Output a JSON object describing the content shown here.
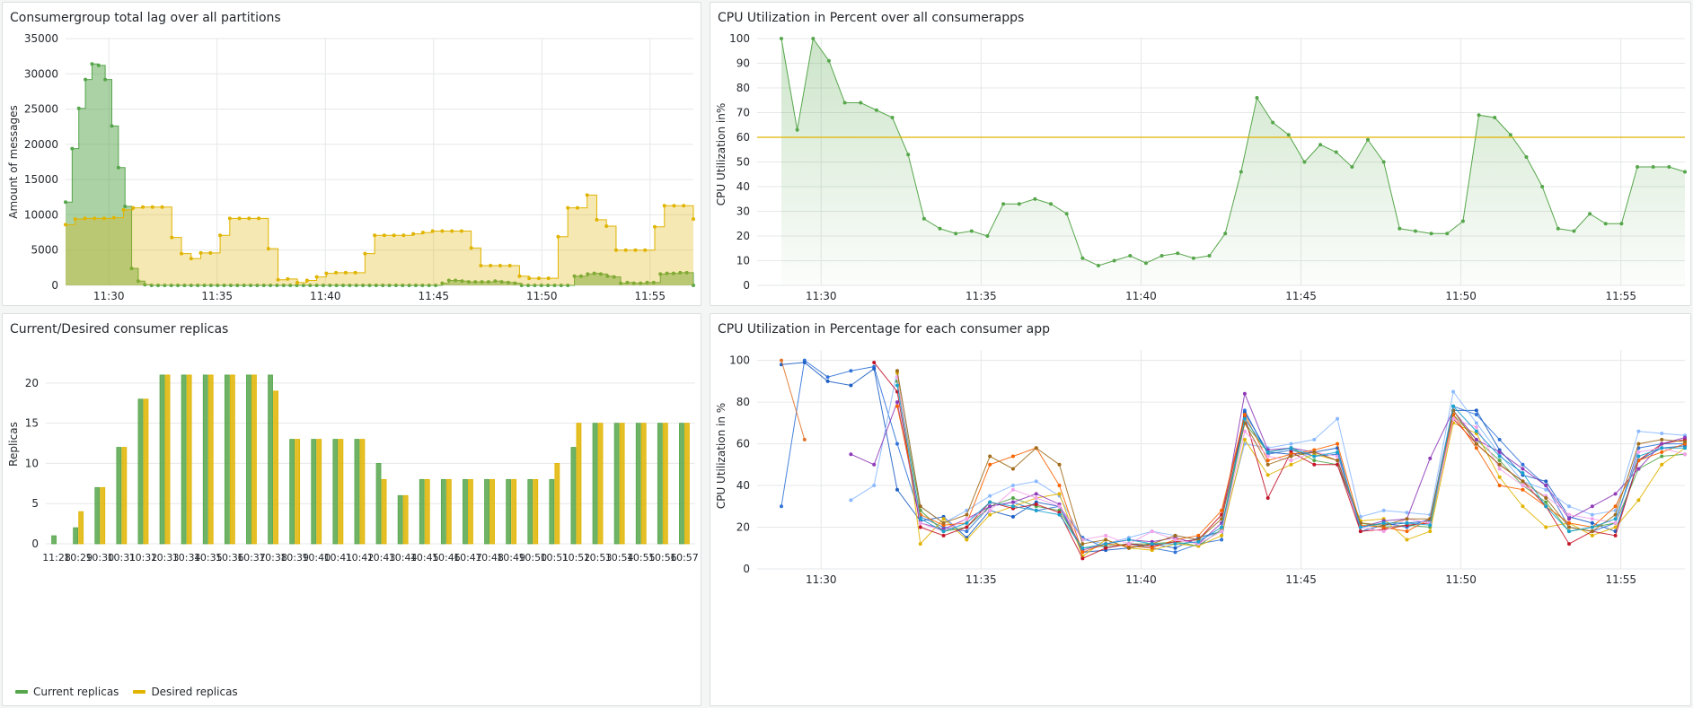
{
  "panels": [
    {
      "title": "Consumergroup total lag over all partitions"
    },
    {
      "title": "CPU Utilization in Percent over all consumerapps"
    },
    {
      "title": "Current/Desired consumer replicas"
    },
    {
      "title": "CPU Utilization in Percentage for each consumer app"
    }
  ],
  "colors": {
    "green": "#56a64b",
    "yellow": "#e0b400"
  },
  "legend": {
    "current": "Current replicas",
    "desired": "Desired replicas"
  },
  "chart_data": [
    {
      "type": "area",
      "title": "Consumergroup total lag over all partitions",
      "ylabel": "Amount of messages",
      "xlabel": "",
      "ylim": [
        0,
        35000
      ],
      "yticks": [
        "0",
        "5000",
        "10000",
        "15000",
        "20000",
        "25000",
        "30000",
        "35000"
      ],
      "xticks": [
        "11:30",
        "11:35",
        "11:40",
        "11:45",
        "11:50",
        "11:55"
      ],
      "x_start": "11:28",
      "x_end": "11:57",
      "series": [
        {
          "color": "#56a64b",
          "values": [
            11800,
            19400,
            25100,
            29200,
            31400,
            31200,
            29200,
            22600,
            16700,
            11200,
            2400,
            600,
            100,
            0,
            0,
            0,
            0,
            0,
            0,
            0,
            0,
            0,
            0,
            0,
            0,
            0,
            0,
            0,
            0,
            0,
            0,
            0,
            0,
            0,
            0,
            0,
            0,
            0,
            0,
            0,
            0,
            0,
            0,
            0,
            0,
            0,
            0,
            0,
            0,
            0,
            0,
            0,
            0,
            0,
            0,
            0,
            0,
            300,
            700,
            700,
            600,
            500,
            500,
            500,
            500,
            600,
            500,
            400,
            300,
            0,
            0,
            0,
            0,
            0,
            0,
            0,
            0,
            1300,
            1300,
            1600,
            1700,
            1600,
            1300,
            1200,
            300,
            400,
            300,
            300,
            400,
            400,
            1600,
            1700,
            1700,
            1800,
            1800,
            0
          ]
        },
        {
          "color": "#e0b400",
          "values": [
            8600,
            9400,
            9500,
            9500,
            9500,
            9600,
            10700,
            11000,
            11100,
            11100,
            11100,
            6800,
            4500,
            3800,
            4600,
            4600,
            7100,
            9500,
            9500,
            9500,
            9500,
            5200,
            800,
            900,
            400,
            700,
            1200,
            1700,
            1800,
            1800,
            1800,
            4500,
            7100,
            7100,
            7100,
            7100,
            7300,
            7500,
            7700,
            7700,
            7700,
            7700,
            5300,
            2800,
            2800,
            2800,
            2800,
            1300,
            1000,
            1000,
            1000,
            6900,
            11000,
            11000,
            12800,
            9300,
            8400,
            5000,
            5000,
            5000,
            5000,
            8300,
            11300,
            11300,
            11300,
            9400
          ]
        }
      ]
    },
    {
      "type": "line",
      "title": "CPU Utilization in Percent over all consumerapps",
      "ylabel": "CPU Utilization in%",
      "xlabel": "",
      "ylim": [
        0,
        100
      ],
      "yticks": [
        "0",
        "10",
        "20",
        "30",
        "40",
        "50",
        "60",
        "70",
        "80",
        "90",
        "100"
      ],
      "xticks": [
        "11:30",
        "11:35",
        "11:40",
        "11:45",
        "11:50",
        "11:55"
      ],
      "x_start": "11:28",
      "x_end": "11:57",
      "threshold": 60,
      "series": [
        {
          "color": "#56a64b",
          "values": [
            100,
            63,
            100,
            91,
            74,
            74,
            71,
            68,
            53,
            27,
            23,
            21,
            22,
            20,
            33,
            33,
            35,
            33,
            29,
            11,
            8,
            10,
            12,
            9,
            12,
            13,
            11,
            12,
            21,
            46,
            76,
            66,
            61,
            50,
            57,
            54,
            48,
            59,
            50,
            23,
            22,
            21,
            21,
            26,
            69,
            68,
            61,
            52,
            40,
            23,
            22,
            29,
            25,
            25,
            48,
            48,
            48,
            46
          ]
        }
      ]
    },
    {
      "type": "bar",
      "title": "Current/Desired consumer replicas",
      "ylabel": "Replicas",
      "xlabel": "",
      "ylim": [
        0,
        23
      ],
      "yticks": [
        "0",
        "5",
        "10",
        "15",
        "20"
      ],
      "categories": [
        "11:28",
        "11:29",
        "11:30",
        "11:31",
        "11:32",
        "11:33",
        "11:34",
        "11:35",
        "11:36",
        "11:37",
        "11:38",
        "11:39",
        "11:40",
        "11:41",
        "11:42",
        "11:43",
        "11:44",
        "11:45",
        "11:46",
        "11:47",
        "11:48",
        "11:49",
        "11:50",
        "11:51",
        "11:52",
        "11:53",
        "11:54",
        "11:55",
        "11:56",
        "11:57"
      ],
      "category_labels": [
        "11:28",
        "10:29",
        "10:30",
        "10:31",
        "10:32",
        "10:33",
        "10:34",
        "10:35",
        "10:36",
        "10:37",
        "10:38",
        "10:39",
        "10:40",
        "10:41",
        "10:42",
        "10:43",
        "10:44",
        "10:45",
        "10:46",
        "10:47",
        "10:48",
        "10:49",
        "10:50",
        "10:51",
        "10:52",
        "10:53",
        "10:54",
        "10:55",
        "10:56",
        "10:57"
      ],
      "series": [
        {
          "name": "Current replicas",
          "color": "#56a64b",
          "values": [
            1,
            2,
            7,
            12,
            18,
            21,
            21,
            21,
            21,
            21,
            21,
            13,
            13,
            13,
            13,
            10,
            6,
            8,
            8,
            8,
            8,
            8,
            8,
            8,
            12,
            15,
            15,
            15,
            15,
            15
          ]
        },
        {
          "name": "Desired replicas",
          "color": "#e0b400",
          "values": [
            0,
            4,
            7,
            12,
            18,
            21,
            21,
            21,
            21,
            21,
            19,
            13,
            13,
            13,
            13,
            8,
            6,
            8,
            8,
            8,
            8,
            8,
            8,
            10,
            15,
            15,
            15,
            15,
            15,
            15
          ]
        }
      ]
    },
    {
      "type": "line",
      "title": "CPU Utilization in Percentage for each consumer app",
      "ylabel": "CPU Utilization in %",
      "xlabel": "",
      "ylim": [
        0,
        105
      ],
      "yticks": [
        "0",
        "20",
        "40",
        "60",
        "80",
        "100"
      ],
      "xticks": [
        "11:30",
        "11:35",
        "11:40",
        "11:45",
        "11:50",
        "11:55"
      ],
      "x_start": "11:28",
      "x_end": "11:57",
      "series": [
        {
          "color": "#3274d9",
          "values": [
            30,
            100,
            92,
            95,
            97,
            60,
            25,
            20,
            18,
            30,
            32,
            28,
            30,
            15,
            10,
            12,
            10,
            8,
            12,
            14,
            76,
            55,
            57,
            54,
            55,
            20,
            22,
            20,
            24,
            78,
            74,
            62,
            50,
            40,
            20,
            18,
            22,
            58,
            60,
            60
          ]
        },
        {
          "color": "#1f60c4",
          "values": [
            98,
            99,
            90,
            88,
            96,
            38,
            23,
            25,
            15,
            28,
            25,
            32,
            30,
            8,
            9,
            10,
            12,
            10,
            15,
            18,
            75,
            56,
            55,
            56,
            58,
            18,
            21,
            22,
            23,
            76,
            76,
            57,
            45,
            42,
            25,
            22,
            18,
            52,
            58,
            59
          ]
        },
        {
          "color": "#e0752d",
          "values": [
            100,
            62,
            null,
            null,
            null,
            null,
            null,
            null,
            null,
            null,
            null,
            null,
            null,
            null,
            null,
            null,
            null,
            null,
            null,
            null,
            null,
            null,
            null,
            null,
            null,
            null,
            null,
            null,
            null,
            null,
            null,
            null,
            null,
            null,
            null,
            null,
            null,
            null,
            null,
            null
          ]
        },
        {
          "color": "#8ab8ff",
          "values": [
            null,
            null,
            null,
            33,
            40,
            95,
            30,
            22,
            28,
            35,
            40,
            42,
            35,
            14,
            12,
            15,
            18,
            16,
            14,
            18,
            60,
            58,
            60,
            62,
            72,
            25,
            28,
            27,
            26,
            85,
            70,
            55,
            42,
            38,
            30,
            26,
            28,
            66,
            65,
            64
          ]
        },
        {
          "color": "#56a64b",
          "values": [
            null,
            null,
            null,
            null,
            null,
            90,
            28,
            18,
            20,
            30,
            34,
            30,
            28,
            10,
            11,
            12,
            12,
            13,
            11,
            19,
            70,
            56,
            58,
            52,
            50,
            22,
            20,
            21,
            20,
            74,
            62,
            52,
            40,
            32,
            18,
            20,
            22,
            48,
            54,
            55
          ]
        },
        {
          "color": "#e0b400",
          "values": [
            null,
            null,
            null,
            null,
            null,
            94,
            12,
            24,
            14,
            26,
            30,
            34,
            36,
            6,
            14,
            10,
            9,
            12,
            11,
            16,
            62,
            45,
            50,
            55,
            52,
            23,
            24,
            14,
            18,
            70,
            65,
            44,
            30,
            20,
            22,
            16,
            20,
            33,
            50,
            58
          ]
        },
        {
          "color": "#c4162a",
          "values": [
            null,
            null,
            null,
            null,
            99,
            85,
            20,
            16,
            20,
            32,
            29,
            31,
            27,
            5,
            10,
            12,
            11,
            13,
            14,
            26,
            73,
            34,
            56,
            50,
            50,
            18,
            19,
            21,
            22,
            72,
            60,
            50,
            42,
            30,
            12,
            18,
            16,
            52,
            60,
            62
          ]
        },
        {
          "color": "#8f3bb8",
          "values": [
            null,
            null,
            null,
            55,
            50,
            80,
            22,
            19,
            24,
            30,
            32,
            36,
            31,
            9,
            12,
            14,
            13,
            15,
            12,
            22,
            84,
            57,
            58,
            56,
            52,
            20,
            23,
            24,
            53,
            76,
            62,
            56,
            48,
            40,
            24,
            30,
            36,
            48,
            60,
            63
          ]
        },
        {
          "color": "#fa6400",
          "values": [
            null,
            null,
            null,
            null,
            null,
            78,
            26,
            21,
            22,
            50,
            54,
            58,
            40,
            8,
            12,
            11,
            10,
            14,
            16,
            28,
            74,
            52,
            55,
            57,
            60,
            21,
            20,
            18,
            24,
            74,
            58,
            40,
            38,
            30,
            22,
            20,
            30,
            52,
            56,
            60
          ]
        },
        {
          "color": "#f2a2e8",
          "values": [
            null,
            null,
            null,
            null,
            null,
            92,
            22,
            18,
            24,
            28,
            38,
            34,
            30,
            14,
            16,
            12,
            18,
            14,
            12,
            18,
            66,
            54,
            52,
            56,
            54,
            20,
            18,
            24,
            22,
            72,
            68,
            48,
            40,
            35,
            26,
            24,
            22,
            56,
            58,
            55
          ]
        },
        {
          "color": "#a16d1c",
          "values": [
            null,
            null,
            null,
            null,
            null,
            95,
            30,
            22,
            26,
            54,
            48,
            58,
            50,
            12,
            14,
            10,
            12,
            16,
            14,
            24,
            70,
            50,
            54,
            56,
            52,
            22,
            21,
            24,
            24,
            76,
            60,
            50,
            42,
            34,
            20,
            18,
            26,
            60,
            62,
            61
          ]
        },
        {
          "color": "#19a2cd",
          "values": [
            null,
            null,
            null,
            null,
            null,
            88,
            24,
            18,
            22,
            32,
            30,
            28,
            26,
            10,
            12,
            14,
            12,
            12,
            13,
            20,
            72,
            56,
            58,
            54,
            56,
            20,
            22,
            22,
            21,
            78,
            66,
            54,
            46,
            30,
            18,
            20,
            24,
            54,
            58,
            58
          ]
        }
      ]
    }
  ]
}
